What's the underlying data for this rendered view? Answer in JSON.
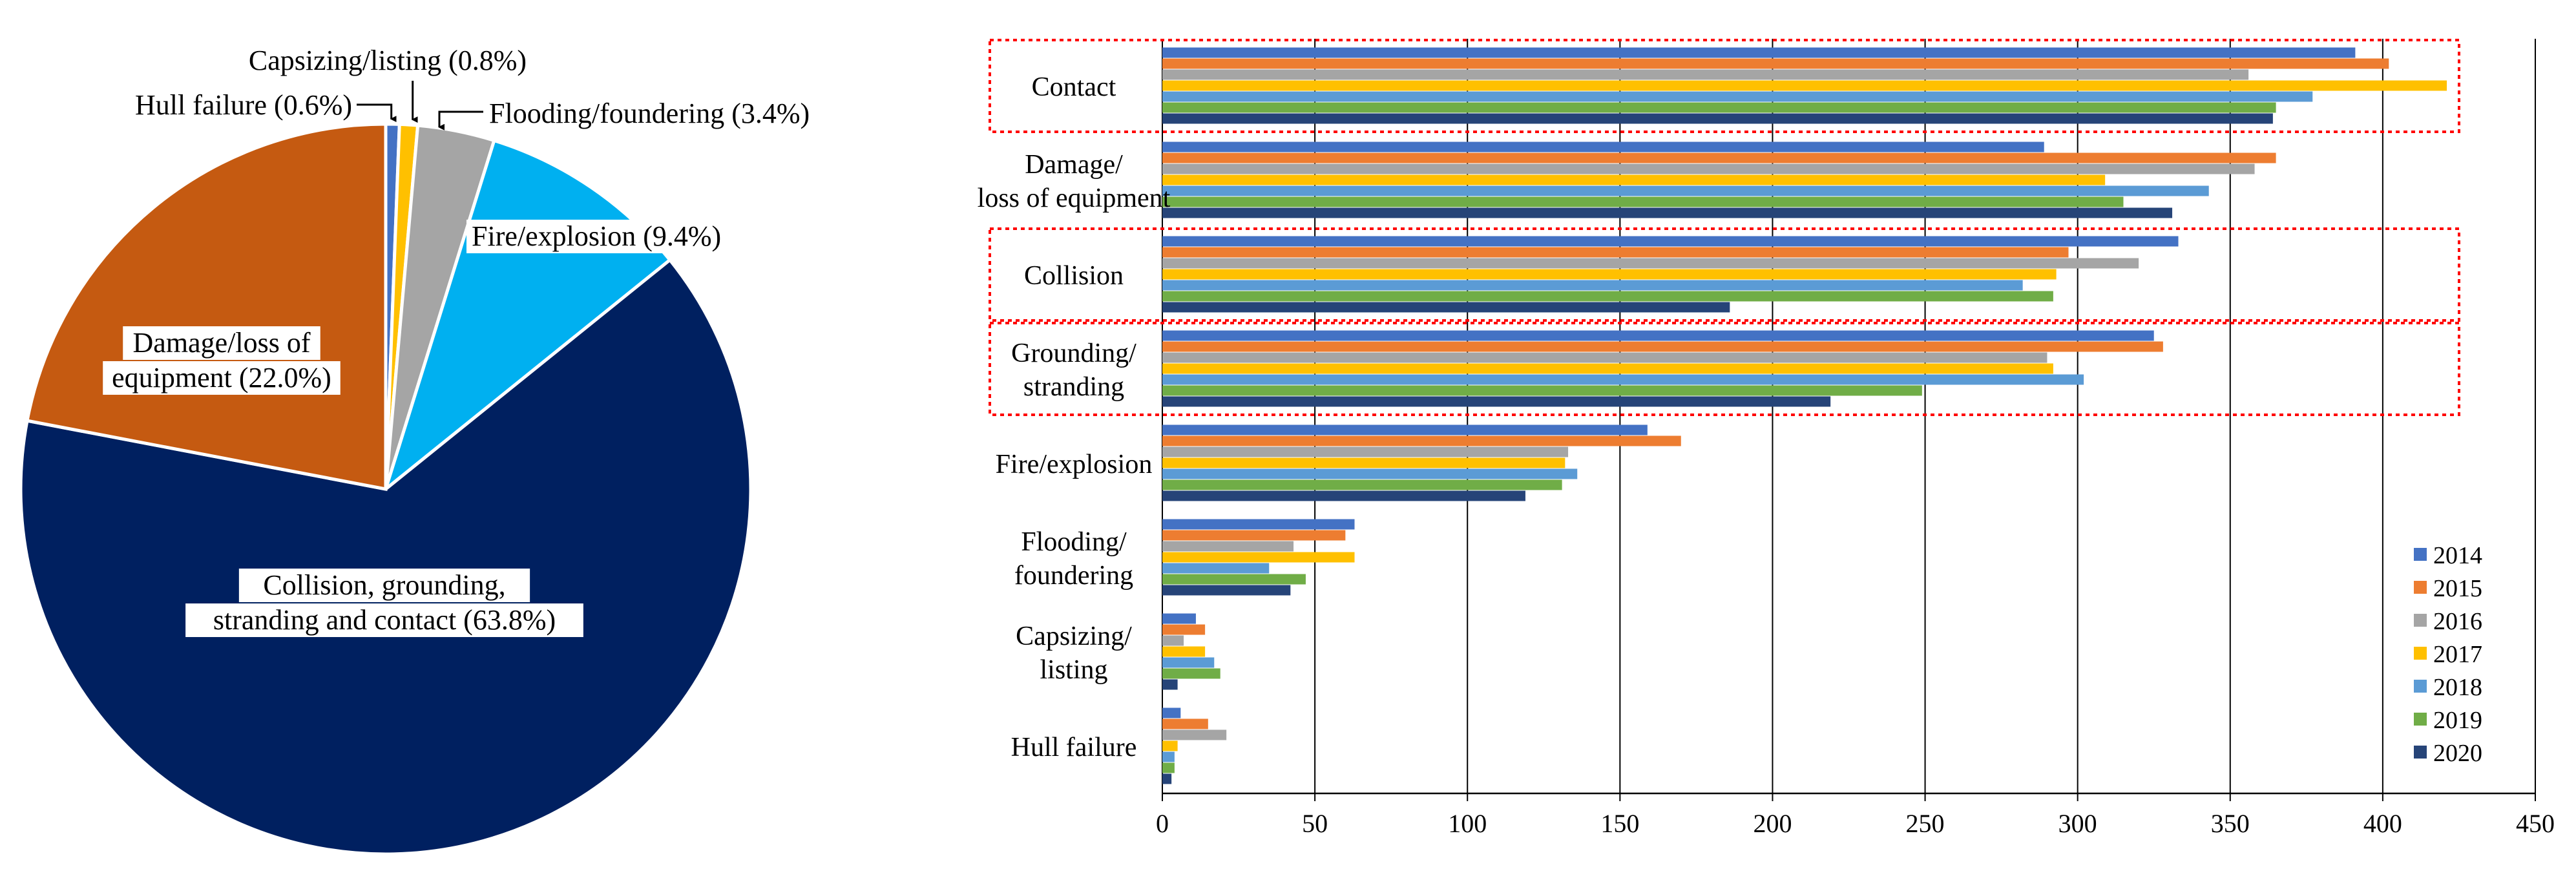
{
  "chart_data": [
    {
      "type": "pie",
      "title": "",
      "slices": [
        {
          "label": "Hull failure (0.6%)",
          "value": 0.6,
          "color": "#4472c4"
        },
        {
          "label": "Capsizing/listing (0.8%)",
          "value": 0.8,
          "color": "#ffc000"
        },
        {
          "label": "Flooding/foundering (3.4%)",
          "value": 3.4,
          "color": "#a5a5a5"
        },
        {
          "label": "Fire/explosion (9.4%)",
          "value": 9.4,
          "color": "#00b0f0"
        },
        {
          "label": "Collision, grounding, stranding and contact (63.8%)",
          "label_lines": [
            "Collision, grounding,",
            "stranding and contact (63.8%)"
          ],
          "value": 63.8,
          "color": "#002060"
        },
        {
          "label": "Damage/loss of equipment (22.0%)",
          "label_lines": [
            "Damage/loss of",
            "equipment (22.0%)"
          ],
          "value": 22.0,
          "color": "#c55a11"
        }
      ]
    },
    {
      "type": "bar",
      "orientation": "horizontal",
      "title": "",
      "xlabel": "",
      "ylabel": "",
      "xlim": [
        0,
        450
      ],
      "x_ticks": [
        "0",
        "50",
        "100",
        "150",
        "200",
        "250",
        "300",
        "350",
        "400",
        "450"
      ],
      "grid": true,
      "legend_position": "bottom-right",
      "categories": [
        {
          "label": "Contact",
          "lines": [
            "Contact"
          ],
          "highlighted": true
        },
        {
          "label": "Damage/ loss of equipment",
          "lines": [
            "Damage/",
            "loss of equipment"
          ],
          "highlighted": false
        },
        {
          "label": "Collision",
          "lines": [
            "Collision"
          ],
          "highlighted": true
        },
        {
          "label": "Grounding/ stranding",
          "lines": [
            "Grounding/",
            "stranding"
          ],
          "highlighted": true
        },
        {
          "label": "Fire/explosion",
          "lines": [
            "Fire/explosion"
          ],
          "highlighted": false
        },
        {
          "label": "Flooding/ foundering",
          "lines": [
            "Flooding/",
            "foundering"
          ],
          "highlighted": false
        },
        {
          "label": "Capsizing/ listing",
          "lines": [
            "Capsizing/",
            "listing"
          ],
          "highlighted": false
        },
        {
          "label": "Hull failure",
          "lines": [
            "Hull failure"
          ],
          "highlighted": false
        }
      ],
      "series": [
        {
          "name": "2014",
          "color": "#4472c4",
          "values": [
            391,
            289,
            333,
            325,
            159,
            63,
            11,
            6
          ]
        },
        {
          "name": "2015",
          "color": "#ed7d31",
          "values": [
            402,
            365,
            297,
            328,
            170,
            60,
            14,
            15
          ]
        },
        {
          "name": "2016",
          "color": "#a5a5a5",
          "values": [
            356,
            358,
            320,
            290,
            133,
            43,
            7,
            21
          ]
        },
        {
          "name": "2017",
          "color": "#ffc000",
          "values": [
            421,
            309,
            293,
            292,
            132,
            63,
            14,
            5
          ]
        },
        {
          "name": "2018",
          "color": "#5b9bd5",
          "values": [
            377,
            343,
            282,
            302,
            136,
            35,
            17,
            4
          ]
        },
        {
          "name": "2019",
          "color": "#70ad47",
          "values": [
            365,
            315,
            292,
            249,
            131,
            47,
            19,
            4
          ]
        },
        {
          "name": "2020",
          "color": "#264478",
          "values": [
            364,
            331,
            186,
            219,
            119,
            42,
            5,
            3
          ]
        }
      ]
    }
  ]
}
